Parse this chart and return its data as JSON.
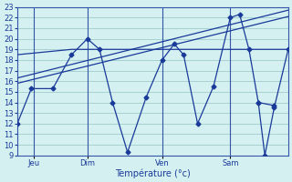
{
  "bg_color": "#d4f0f0",
  "grid_color": "#a0cccc",
  "line_color": "#1a3a9a",
  "ylim": [
    9,
    23
  ],
  "yticks": [
    9,
    10,
    11,
    12,
    13,
    14,
    15,
    16,
    17,
    18,
    19,
    20,
    21,
    22,
    23
  ],
  "xlabel": "Température (°c)",
  "xlabel_fontsize": 7,
  "tick_fontsize": 6,
  "day_labels": [
    "Jeu",
    "Dim",
    "Ven",
    "Sam"
  ],
  "day_positions": [
    18,
    75,
    155,
    228
  ],
  "xlim": [
    0,
    290
  ],
  "series1_x": [
    0,
    15,
    38,
    58,
    75,
    88,
    102,
    118,
    138,
    155,
    168,
    178,
    193,
    210,
    228,
    238,
    248,
    258,
    275
  ],
  "series1_y": [
    12,
    15.3,
    15.3,
    18.5,
    20,
    19,
    14,
    9.3,
    14.5,
    18,
    19.5,
    18.5,
    12,
    15.5,
    22,
    22.3,
    19,
    14,
    13.7
  ],
  "series2_x": [
    0,
    290
  ],
  "series2_y": [
    18.5,
    19.0
  ],
  "series2_nodes_x": [
    0,
    58,
    75,
    138,
    155,
    228,
    290
  ],
  "series2_nodes_y": [
    18.5,
    19.0,
    19.0,
    19.0,
    19.0,
    19.0,
    19.0
  ],
  "series3_x": [
    0,
    290
  ],
  "series3_y": [
    15.8,
    22.1
  ],
  "series4_x": [
    0,
    290
  ],
  "series4_y": [
    16.3,
    22.7
  ],
  "series5_x": [
    258,
    265,
    275,
    290
  ],
  "series5_y": [
    14,
    9.0,
    13.5,
    19.0
  ],
  "marker_size": 2.5,
  "line_width": 0.9
}
